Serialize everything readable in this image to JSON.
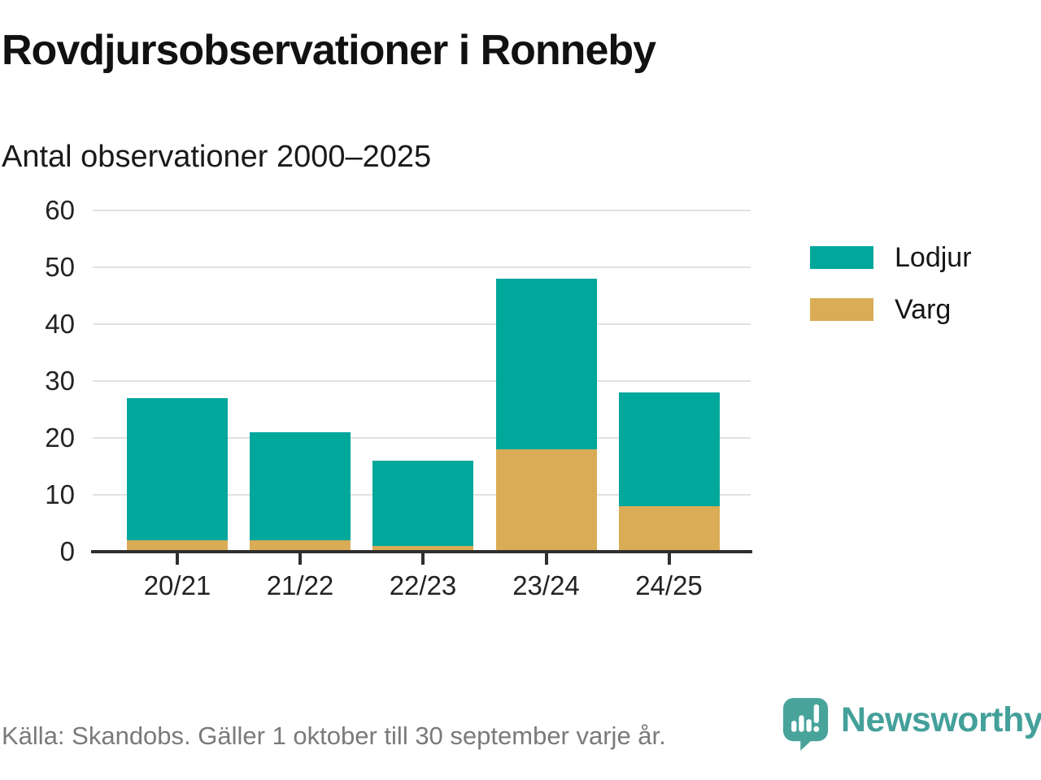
{
  "header": {
    "title": "Rovdjursobservationer i Ronneby",
    "subtitle": "Antal observationer 2000–2025"
  },
  "chart_data": {
    "type": "bar",
    "stacked": true,
    "title": "Rovdjursobservationer i Ronneby",
    "subtitle": "Antal observationer 2000–2025",
    "categories": [
      "20/21",
      "21/22",
      "22/23",
      "23/24",
      "24/25"
    ],
    "series": [
      {
        "name": "Lodjur",
        "color": "#00a79b",
        "values": [
          25,
          19,
          15,
          30,
          20
        ]
      },
      {
        "name": "Varg",
        "color": "#d9ac55",
        "values": [
          2,
          2,
          1,
          18,
          8
        ]
      }
    ],
    "stack_bottom_to_top": [
      "Varg",
      "Lodjur"
    ],
    "stacked_totals": [
      27,
      21,
      16,
      48,
      28
    ],
    "xlabel": "",
    "ylabel": "",
    "ylim": [
      0,
      60
    ],
    "yticks": [
      0,
      10,
      20,
      30,
      40,
      50,
      60
    ],
    "grid": true,
    "legend_position": "right"
  },
  "footer": {
    "source": "Källa: Skandobs. Gäller 1 oktober till 30 september varje år.",
    "brand": "Newsworthy"
  },
  "colors": {
    "lodjur": "#00a79b",
    "varg": "#d9ac55",
    "axis": "#2f2f2f",
    "gridline": "#e1e1e1",
    "text_dark": "#1a1a1a",
    "text_muted": "#7a7a7a",
    "brand_teal": "#44a09a"
  }
}
